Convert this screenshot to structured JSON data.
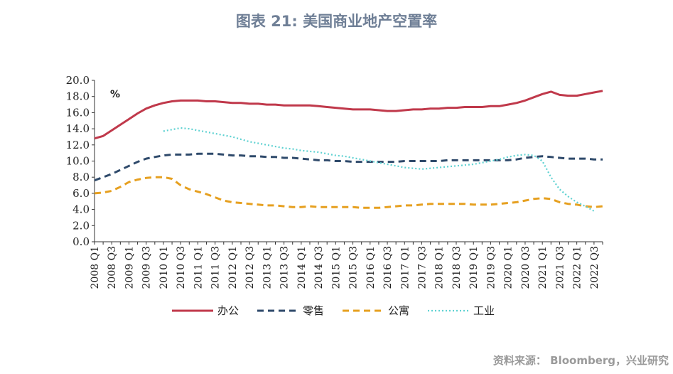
{
  "title": "图表 21: 美国商业地产空置率",
  "source": "资料来源：  Bloomberg，兴业研究",
  "chart_data": {
    "type": "line",
    "title": "图表 21: 美国商业地产空置率",
    "unit_label": "%",
    "ylim": [
      0,
      20
    ],
    "yticks": [
      "0.0",
      "2.0",
      "4.0",
      "6.0",
      "8.0",
      "10.0",
      "12.0",
      "14.0",
      "16.0",
      "18.0",
      "20.0"
    ],
    "x_tick_labels": [
      "2008 Q1",
      "2008 Q3",
      "2009 Q1",
      "2009 Q3",
      "2010 Q1",
      "2010 Q3",
      "2011 Q1",
      "2011 Q3",
      "2012 Q1",
      "2012 Q3",
      "2013 Q1",
      "2013 Q3",
      "2014 Q1",
      "2014 Q3",
      "2015 Q1",
      "2015 Q3",
      "2016 Q1",
      "2016 Q3",
      "2017 Q1",
      "2017 Q3",
      "2018 Q1",
      "2018 Q3",
      "2019 Q1",
      "2019 Q3",
      "2020 Q1",
      "2020 Q3",
      "2021 Q1",
      "2021 Q3",
      "2022 Q1",
      "2022 Q3"
    ],
    "n_quarters": 60,
    "series": [
      {
        "name": "办公",
        "color": "#c0394b",
        "dash": "solid",
        "start_index": 0,
        "values": [
          12.8,
          13.1,
          13.8,
          14.5,
          15.2,
          15.9,
          16.5,
          16.9,
          17.2,
          17.4,
          17.5,
          17.5,
          17.5,
          17.4,
          17.4,
          17.3,
          17.2,
          17.2,
          17.1,
          17.1,
          17.0,
          17.0,
          16.9,
          16.9,
          16.9,
          16.9,
          16.8,
          16.7,
          16.6,
          16.5,
          16.4,
          16.4,
          16.4,
          16.3,
          16.2,
          16.2,
          16.3,
          16.4,
          16.4,
          16.5,
          16.5,
          16.6,
          16.6,
          16.7,
          16.7,
          16.7,
          16.8,
          16.8,
          17.0,
          17.2,
          17.5,
          17.9,
          18.3,
          18.6,
          18.2,
          18.1,
          18.1,
          18.3,
          18.5,
          18.7
        ]
      },
      {
        "name": "零售",
        "color": "#2f4a6b",
        "dash": "dashed",
        "start_index": 0,
        "values": [
          7.6,
          8.0,
          8.4,
          8.9,
          9.4,
          9.9,
          10.3,
          10.5,
          10.7,
          10.8,
          10.8,
          10.8,
          10.9,
          10.9,
          10.9,
          10.8,
          10.7,
          10.7,
          10.6,
          10.6,
          10.5,
          10.5,
          10.4,
          10.4,
          10.3,
          10.2,
          10.1,
          10.1,
          10.0,
          10.0,
          9.9,
          9.9,
          9.9,
          9.9,
          9.9,
          9.9,
          10.0,
          10.0,
          10.0,
          10.0,
          10.0,
          10.1,
          10.1,
          10.1,
          10.1,
          10.1,
          10.1,
          10.1,
          10.1,
          10.2,
          10.4,
          10.5,
          10.6,
          10.5,
          10.4,
          10.3,
          10.3,
          10.3,
          10.2,
          10.2
        ]
      },
      {
        "name": "公寓",
        "color": "#e6a020",
        "dash": "dashed",
        "start_index": 0,
        "values": [
          6.0,
          6.1,
          6.3,
          6.8,
          7.4,
          7.7,
          7.9,
          8.0,
          8.0,
          7.8,
          7.0,
          6.5,
          6.2,
          5.9,
          5.5,
          5.1,
          4.9,
          4.8,
          4.7,
          4.6,
          4.5,
          4.5,
          4.4,
          4.3,
          4.3,
          4.4,
          4.3,
          4.3,
          4.3,
          4.3,
          4.3,
          4.2,
          4.2,
          4.2,
          4.3,
          4.4,
          4.5,
          4.5,
          4.6,
          4.7,
          4.7,
          4.7,
          4.7,
          4.7,
          4.6,
          4.6,
          4.6,
          4.7,
          4.8,
          4.9,
          5.1,
          5.3,
          5.4,
          5.3,
          4.9,
          4.7,
          4.6,
          4.4,
          4.3,
          4.4
        ]
      },
      {
        "name": "工业",
        "color": "#5fd2d2",
        "dash": "dotted",
        "start_index": 8,
        "values": [
          13.7,
          13.9,
          14.1,
          14.0,
          13.8,
          13.6,
          13.4,
          13.2,
          13.0,
          12.7,
          12.4,
          12.2,
          12.0,
          11.8,
          11.6,
          11.5,
          11.3,
          11.2,
          11.1,
          10.9,
          10.7,
          10.6,
          10.4,
          10.2,
          10.0,
          9.8,
          9.6,
          9.4,
          9.2,
          9.1,
          9.0,
          9.1,
          9.2,
          9.3,
          9.4,
          9.5,
          9.6,
          9.8,
          10.0,
          10.2,
          10.5,
          10.7,
          10.8,
          10.7,
          10.0,
          8.0,
          6.5,
          5.6,
          4.9,
          4.4,
          3.8
        ]
      }
    ],
    "legend_position": "bottom"
  }
}
